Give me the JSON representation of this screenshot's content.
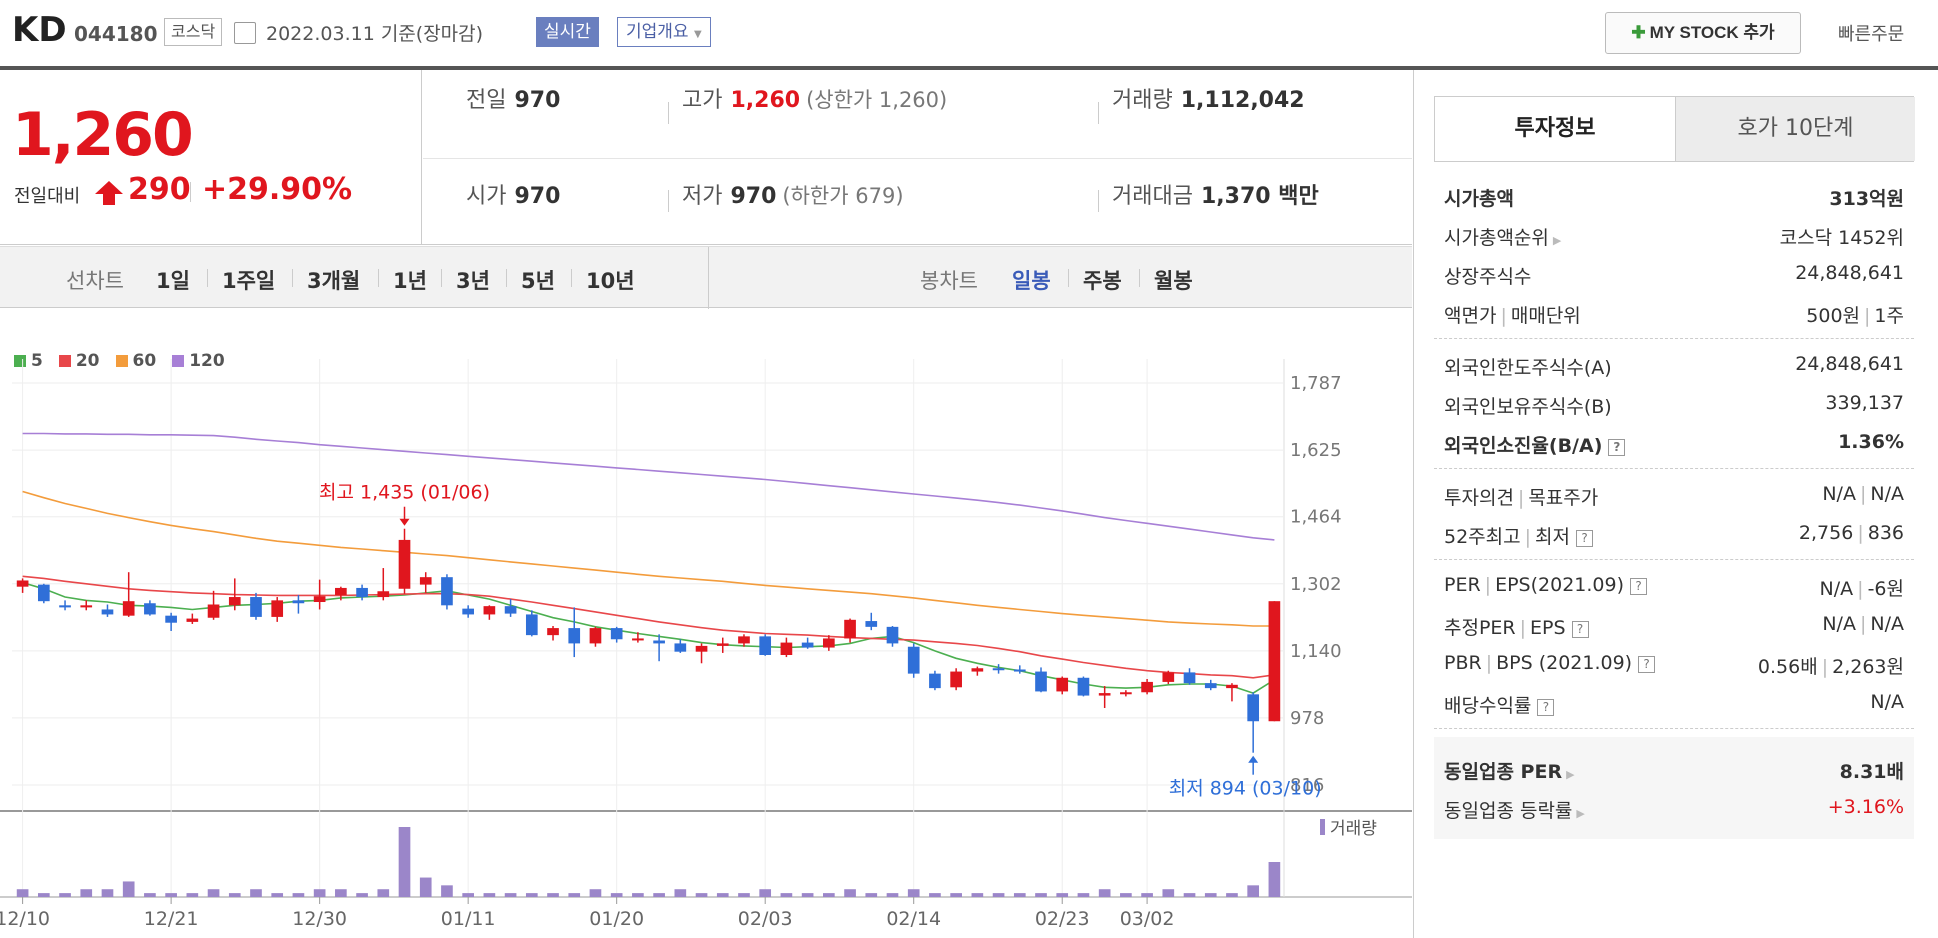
{
  "header": {
    "name": "KD",
    "code": "044180",
    "market": "코스닥",
    "date": "2022.03.11 기준(장마감)",
    "realtime_badge": "실시간",
    "company_overview": "기업개요",
    "my_stock_button": "MY STOCK 추가",
    "quick_order": "빠른주문"
  },
  "price": {
    "current": "1,260",
    "change_label": "전일대비",
    "change": "290",
    "change_rate": "+29.90%",
    "prev_close_label": "전일",
    "prev_close": "970",
    "high_label": "고가",
    "high": "1,260",
    "upper_limit": "(상한가 1,260)",
    "volume_label": "거래량",
    "volume": "1,112,042",
    "open_label": "시가",
    "open": "970",
    "low_label": "저가",
    "low": "970",
    "lower_limit": "(하한가 679)",
    "trade_value_label": "거래대금",
    "trade_value": "1,370 백만"
  },
  "period_tabs": {
    "line_chart_label": "선차트",
    "items": [
      "1일",
      "1주일",
      "3개월",
      "1년",
      "3년",
      "5년",
      "10년"
    ],
    "candle_chart_label": "봉차트",
    "candle_items": [
      "일봉",
      "주봉",
      "월봉"
    ],
    "active_candle": "일봉"
  },
  "chart_data": {
    "type": "candlestick",
    "title": "",
    "legend": [
      {
        "name": "5",
        "color": "#4caf50"
      },
      {
        "name": "20",
        "color": "#e8474a"
      },
      {
        "name": "60",
        "color": "#f39c3c"
      },
      {
        "name": "120",
        "color": "#a77fd6"
      }
    ],
    "y_ticks": [
      1787,
      1625,
      1464,
      1302,
      1140,
      978,
      816
    ],
    "ylim": [
      816,
      1787
    ],
    "x_tick_labels": [
      {
        "index": 0,
        "label": "12/10"
      },
      {
        "index": 7,
        "label": "12/21"
      },
      {
        "index": 14,
        "label": "12/30"
      },
      {
        "index": 21,
        "label": "01/11"
      },
      {
        "index": 28,
        "label": "01/20"
      },
      {
        "index": 35,
        "label": "02/03"
      },
      {
        "index": 42,
        "label": "02/14"
      },
      {
        "index": 49,
        "label": "02/23"
      },
      {
        "index": 53,
        "label": "03/02"
      }
    ],
    "annotations": [
      {
        "text": "최고 1,435 (01/06)",
        "index": 18,
        "value": 1435,
        "position": "above"
      },
      {
        "text": "최저 894 (03/10)",
        "index": 58,
        "value": 894,
        "position": "below"
      }
    ],
    "ohlc": [
      [
        1295,
        1315,
        1280,
        1310
      ],
      [
        1300,
        1302,
        1255,
        1260
      ],
      [
        1250,
        1262,
        1238,
        1245
      ],
      [
        1245,
        1262,
        1238,
        1250
      ],
      [
        1240,
        1252,
        1222,
        1228
      ],
      [
        1225,
        1330,
        1222,
        1260
      ],
      [
        1255,
        1262,
        1225,
        1228
      ],
      [
        1225,
        1232,
        1188,
        1208
      ],
      [
        1210,
        1230,
        1205,
        1218
      ],
      [
        1220,
        1285,
        1215,
        1252
      ],
      [
        1250,
        1315,
        1238,
        1270
      ],
      [
        1270,
        1280,
        1215,
        1222
      ],
      [
        1222,
        1270,
        1210,
        1262
      ],
      [
        1262,
        1275,
        1230,
        1255
      ],
      [
        1258,
        1312,
        1240,
        1272
      ],
      [
        1275,
        1295,
        1262,
        1292
      ],
      [
        1292,
        1300,
        1262,
        1270
      ],
      [
        1270,
        1340,
        1262,
        1284
      ],
      [
        1290,
        1435,
        1278,
        1408
      ],
      [
        1300,
        1330,
        1280,
        1318
      ],
      [
        1318,
        1325,
        1240,
        1250
      ],
      [
        1242,
        1250,
        1220,
        1228
      ],
      [
        1228,
        1250,
        1215,
        1248
      ],
      [
        1248,
        1265,
        1222,
        1230
      ],
      [
        1228,
        1238,
        1175,
        1178
      ],
      [
        1178,
        1200,
        1165,
        1195
      ],
      [
        1195,
        1245,
        1125,
        1158
      ],
      [
        1158,
        1198,
        1150,
        1195
      ],
      [
        1195,
        1198,
        1160,
        1168
      ],
      [
        1168,
        1185,
        1160,
        1170
      ],
      [
        1165,
        1180,
        1115,
        1158
      ],
      [
        1158,
        1168,
        1135,
        1138
      ],
      [
        1138,
        1158,
        1110,
        1152
      ],
      [
        1152,
        1172,
        1135,
        1158
      ],
      [
        1158,
        1180,
        1150,
        1175
      ],
      [
        1175,
        1180,
        1128,
        1130
      ],
      [
        1130,
        1172,
        1125,
        1160
      ],
      [
        1160,
        1172,
        1145,
        1148
      ],
      [
        1148,
        1178,
        1140,
        1170
      ],
      [
        1170,
        1218,
        1160,
        1215
      ],
      [
        1212,
        1232,
        1190,
        1198
      ],
      [
        1198,
        1200,
        1150,
        1158
      ],
      [
        1150,
        1158,
        1075,
        1085
      ],
      [
        1085,
        1092,
        1045,
        1050
      ],
      [
        1052,
        1098,
        1045,
        1090
      ],
      [
        1090,
        1102,
        1080,
        1098
      ],
      [
        1098,
        1108,
        1085,
        1095
      ],
      [
        1095,
        1105,
        1085,
        1090
      ],
      [
        1090,
        1100,
        1040,
        1042
      ],
      [
        1042,
        1078,
        1035,
        1075
      ],
      [
        1075,
        1078,
        1030,
        1032
      ],
      [
        1032,
        1055,
        1002,
        1038
      ],
      [
        1038,
        1045,
        1030,
        1040
      ],
      [
        1040,
        1072,
        1035,
        1065
      ],
      [
        1065,
        1092,
        1060,
        1088
      ],
      [
        1088,
        1098,
        1058,
        1062
      ],
      [
        1062,
        1070,
        1045,
        1050
      ],
      [
        1050,
        1062,
        1018,
        1058
      ],
      [
        1035,
        1040,
        894,
        970
      ],
      [
        970,
        1260,
        970,
        1260
      ]
    ],
    "ma": {
      "5": [
        1305,
        1290,
        1270,
        1262,
        1258,
        1250,
        1248,
        1245,
        1240,
        1245,
        1250,
        1252,
        1255,
        1260,
        1262,
        1268,
        1270,
        1272,
        1275,
        1280,
        1285,
        1275,
        1265,
        1250,
        1235,
        1220,
        1210,
        1198,
        1190,
        1182,
        1175,
        1168,
        1160,
        1155,
        1152,
        1150,
        1148,
        1150,
        1152,
        1158,
        1170,
        1175,
        1160,
        1140,
        1122,
        1110,
        1100,
        1092,
        1080,
        1070,
        1060,
        1052,
        1050,
        1052,
        1058,
        1060,
        1060,
        1055,
        1038,
        1070
      ],
      "20": [
        1320,
        1315,
        1308,
        1302,
        1296,
        1290,
        1286,
        1283,
        1280,
        1278,
        1276,
        1275,
        1274,
        1274,
        1274,
        1274,
        1275,
        1276,
        1277,
        1278,
        1278,
        1276,
        1272,
        1265,
        1258,
        1250,
        1242,
        1234,
        1226,
        1218,
        1210,
        1203,
        1196,
        1190,
        1186,
        1182,
        1180,
        1178,
        1175,
        1172,
        1170,
        1168,
        1166,
        1162,
        1158,
        1153,
        1146,
        1138,
        1128,
        1120,
        1112,
        1105,
        1098,
        1092,
        1088,
        1085,
        1082,
        1080,
        1075,
        1082
      ],
      "60": [
        1525,
        1510,
        1496,
        1484,
        1472,
        1462,
        1452,
        1443,
        1435,
        1428,
        1420,
        1412,
        1405,
        1400,
        1395,
        1390,
        1386,
        1382,
        1378,
        1374,
        1370,
        1365,
        1360,
        1355,
        1350,
        1345,
        1340,
        1335,
        1330,
        1325,
        1320,
        1316,
        1312,
        1308,
        1303,
        1298,
        1294,
        1290,
        1286,
        1282,
        1278,
        1273,
        1268,
        1262,
        1256,
        1250,
        1245,
        1240,
        1235,
        1230,
        1226,
        1222,
        1218,
        1214,
        1210,
        1207,
        1205,
        1203,
        1200,
        1200
      ],
      "120": [
        1665,
        1665,
        1664,
        1664,
        1663,
        1663,
        1662,
        1662,
        1661,
        1660,
        1656,
        1651,
        1647,
        1643,
        1638,
        1634,
        1630,
        1626,
        1622,
        1618,
        1614,
        1610,
        1606,
        1602,
        1598,
        1594,
        1590,
        1586,
        1582,
        1578,
        1574,
        1570,
        1566,
        1562,
        1558,
        1554,
        1549,
        1544,
        1539,
        1534,
        1529,
        1524,
        1519,
        1514,
        1509,
        1504,
        1498,
        1492,
        1485,
        1478,
        1470,
        1462,
        1455,
        1448,
        1441,
        1434,
        1427,
        1420,
        1413,
        1408
      ]
    },
    "volume_label": "거래량",
    "volume": [
      2,
      1,
      1,
      2,
      2,
      4,
      1,
      1,
      1,
      2,
      1,
      2,
      1,
      1,
      2,
      2,
      1,
      2,
      18,
      5,
      3,
      1,
      1,
      1,
      1,
      1,
      1,
      2,
      1,
      1,
      1,
      2,
      1,
      1,
      1,
      2,
      1,
      1,
      1,
      2,
      1,
      1,
      2,
      1,
      1,
      1,
      1,
      1,
      1,
      1,
      1,
      2,
      1,
      1,
      2,
      1,
      1,
      1,
      3,
      9
    ]
  },
  "side_panel": {
    "tab_invest": "투자정보",
    "tab_orderbook": "호가 10단계",
    "group1": [
      {
        "k": "시가총액",
        "v": "313억원",
        "bold": true
      },
      {
        "k": "시가총액순위",
        "v": "코스닥 1452위",
        "arrow": true
      },
      {
        "k": "상장주식수",
        "v": "24,848,641"
      },
      {
        "k": "액면가",
        "k2": "매매단위",
        "v": "500원",
        "v2": "1주"
      }
    ],
    "group2": [
      {
        "k": "외국인한도주식수(A)",
        "v": "24,848,641"
      },
      {
        "k": "외국인보유주식수(B)",
        "v": "339,137"
      },
      {
        "k": "외국인소진율(B/A)",
        "v": "1.36%",
        "bold": true,
        "q": true
      }
    ],
    "group3": [
      {
        "k": "투자의견",
        "k2": "목표주가",
        "v": "N/A",
        "v2": "N/A"
      },
      {
        "k": "52주최고",
        "k2": "최저",
        "v": "2,756",
        "v2": "836",
        "q": true
      }
    ],
    "group4": [
      {
        "k": "PER",
        "k2": "EPS(2021.09)",
        "v": "N/A",
        "v2": "-6원",
        "q": true
      },
      {
        "k": "추정PER",
        "k2": "EPS",
        "v": "N/A",
        "v2": "N/A",
        "q": true
      },
      {
        "k": "PBR",
        "k2": "BPS (2021.09)",
        "v": "0.56배",
        "v2": "2,263원",
        "q": true
      },
      {
        "k": "배당수익률",
        "v": "N/A",
        "q": true
      }
    ],
    "group5": [
      {
        "k": "동일업종 PER",
        "v": "8.31배",
        "bold": true,
        "arrow": true
      },
      {
        "k": "동일업종 등락률",
        "v": "+3.16%",
        "red": true,
        "arrow": true
      }
    ]
  }
}
